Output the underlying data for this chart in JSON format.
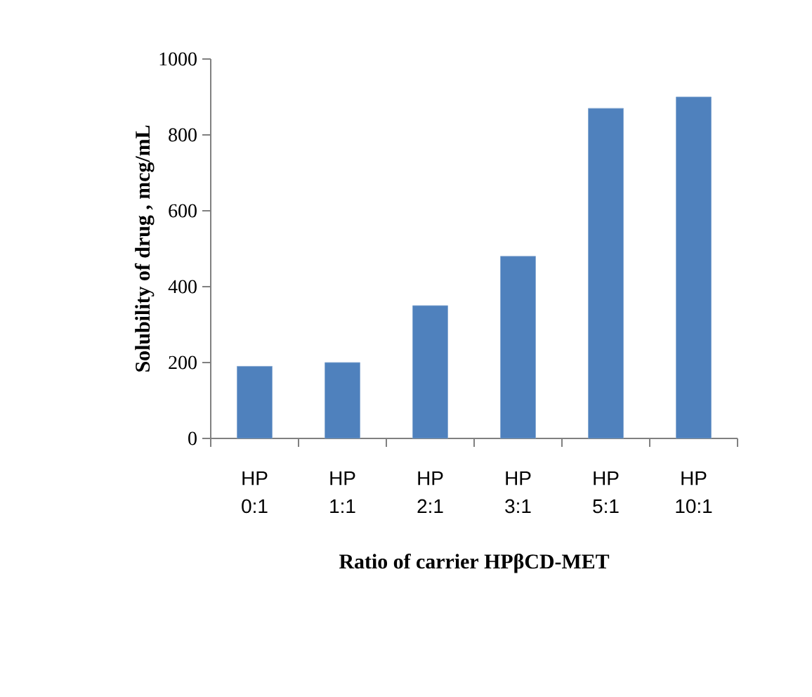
{
  "chart_data": {
    "type": "bar",
    "xlabel": "Ratio of carrier HPβCD-MET",
    "ylabel": "Solubility of drug , mcg/mL",
    "categories": [
      "HP 0:1",
      "HP 1:1",
      "HP 2:1",
      "HP 3:1",
      "HP 5:1",
      "HP 10:1"
    ],
    "values": [
      190,
      200,
      350,
      480,
      870,
      900
    ],
    "color": "#4f81bd",
    "ylim": [
      0,
      1000
    ],
    "yticks": [
      0,
      200,
      400,
      600,
      800,
      1000
    ],
    "grid": false
  }
}
